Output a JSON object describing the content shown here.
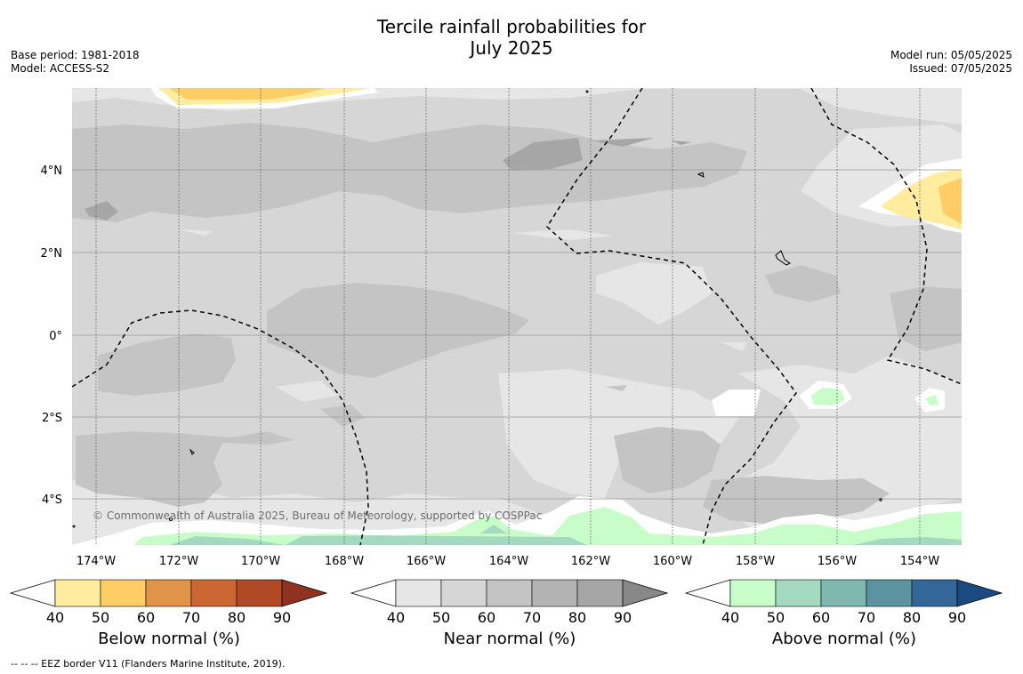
{
  "title": {
    "line1": "Tercile rainfall probabilities for",
    "line2": "July 2025"
  },
  "meta_left": {
    "base_period": "Base period: 1981-2018",
    "model": "Model: ACCESS-S2"
  },
  "meta_right": {
    "model_run": "Model run: 05/05/2025",
    "issued": "Issued: 07/05/2025"
  },
  "map": {
    "lat_labels": [
      "4°N",
      "2°N",
      "0°",
      "2°S",
      "4°S"
    ],
    "lon_labels": [
      "174°W",
      "172°W",
      "170°W",
      "168°W",
      "166°W",
      "164°W",
      "162°W",
      "160°W",
      "158°W",
      "156°W",
      "154°W"
    ],
    "copyright": "© Commonwealth of Australia 2025, Bureau of Meteorology, supported by COSPPac",
    "colors": {
      "near_40": "#e6e6e6",
      "near_50": "#d6d6d6",
      "near_60": "#c4c4c4",
      "near_70": "#b3b3b3",
      "near_80": "#a6a6a6",
      "below_40": "#ffec9e",
      "below_50": "#ffcc66",
      "above_40": "#c8fcc8",
      "above_50": "#a3d9bf"
    }
  },
  "colorbars": [
    {
      "name": "below",
      "title": "Below normal (%)",
      "ticks": [
        "40",
        "50",
        "60",
        "70",
        "80",
        "90"
      ],
      "colors": [
        "#ffec9e",
        "#ffcc66",
        "#e0944a",
        "#cc6633",
        "#b04a26",
        "#8f3320"
      ]
    },
    {
      "name": "near",
      "title": "Near normal (%)",
      "ticks": [
        "40",
        "50",
        "60",
        "70",
        "80",
        "90"
      ],
      "colors": [
        "#e6e6e6",
        "#d6d6d6",
        "#c4c4c4",
        "#b3b3b3",
        "#a6a6a6",
        "#888888"
      ]
    },
    {
      "name": "above",
      "title": "Above normal (%)",
      "ticks": [
        "40",
        "50",
        "60",
        "70",
        "80",
        "90"
      ],
      "colors": [
        "#c8fcc8",
        "#a3d9bf",
        "#80b8b0",
        "#5c93a0",
        "#336699",
        "#1a4a80"
      ]
    }
  ],
  "footer": {
    "eez_note": "--  --  -- EEZ border V11 (Flanders Marine Institute, 2019)."
  }
}
